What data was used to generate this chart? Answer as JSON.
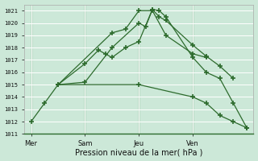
{
  "background_color": "#cce8d8",
  "grid_color": "#ffffff",
  "line_color": "#2d6b2d",
  "title": "Pression niveau de la mer( hPa )",
  "ylim": [
    1011,
    1021.5
  ],
  "yticks": [
    1011,
    1012,
    1013,
    1014,
    1015,
    1016,
    1017,
    1018,
    1019,
    1020,
    1021
  ],
  "day_labels": [
    "Mer",
    "Sam",
    "Jeu",
    "Ven"
  ],
  "day_positions": [
    0,
    4,
    8,
    12
  ],
  "series": [
    {
      "x": [
        0,
        1,
        2,
        4,
        6,
        8,
        8.5,
        9,
        9.5,
        10,
        12,
        13,
        14,
        15,
        16
      ],
      "y": [
        1012.0,
        1013.5,
        1015.0,
        1015.2,
        1018.0,
        1020.0,
        1019.7,
        1021.1,
        1021.0,
        1020.5,
        1017.2,
        1016.0,
        1015.5,
        1013.5,
        1011.5
      ]
    },
    {
      "x": [
        2,
        4,
        5,
        5.5,
        6,
        7,
        8,
        9,
        9.5,
        10,
        12,
        13,
        14,
        15
      ],
      "y": [
        1015.0,
        1016.7,
        1017.8,
        1017.5,
        1017.2,
        1018.0,
        1018.5,
        1021.1,
        1020.5,
        1020.2,
        1018.2,
        1017.3,
        1016.5,
        1015.5
      ]
    },
    {
      "x": [
        2,
        6,
        7,
        8,
        9,
        10,
        12,
        13
      ],
      "y": [
        1015.0,
        1019.2,
        1019.5,
        1021.0,
        1021.0,
        1019.0,
        1017.5,
        1017.2
      ]
    },
    {
      "x": [
        2,
        8,
        12,
        13,
        14,
        15,
        16
      ],
      "y": [
        1015.0,
        1015.0,
        1014.0,
        1013.5,
        1012.5,
        1012.0,
        1011.5
      ]
    }
  ],
  "xlim": [
    -0.5,
    16.5
  ],
  "figsize": [
    3.2,
    2.0
  ],
  "dpi": 100
}
